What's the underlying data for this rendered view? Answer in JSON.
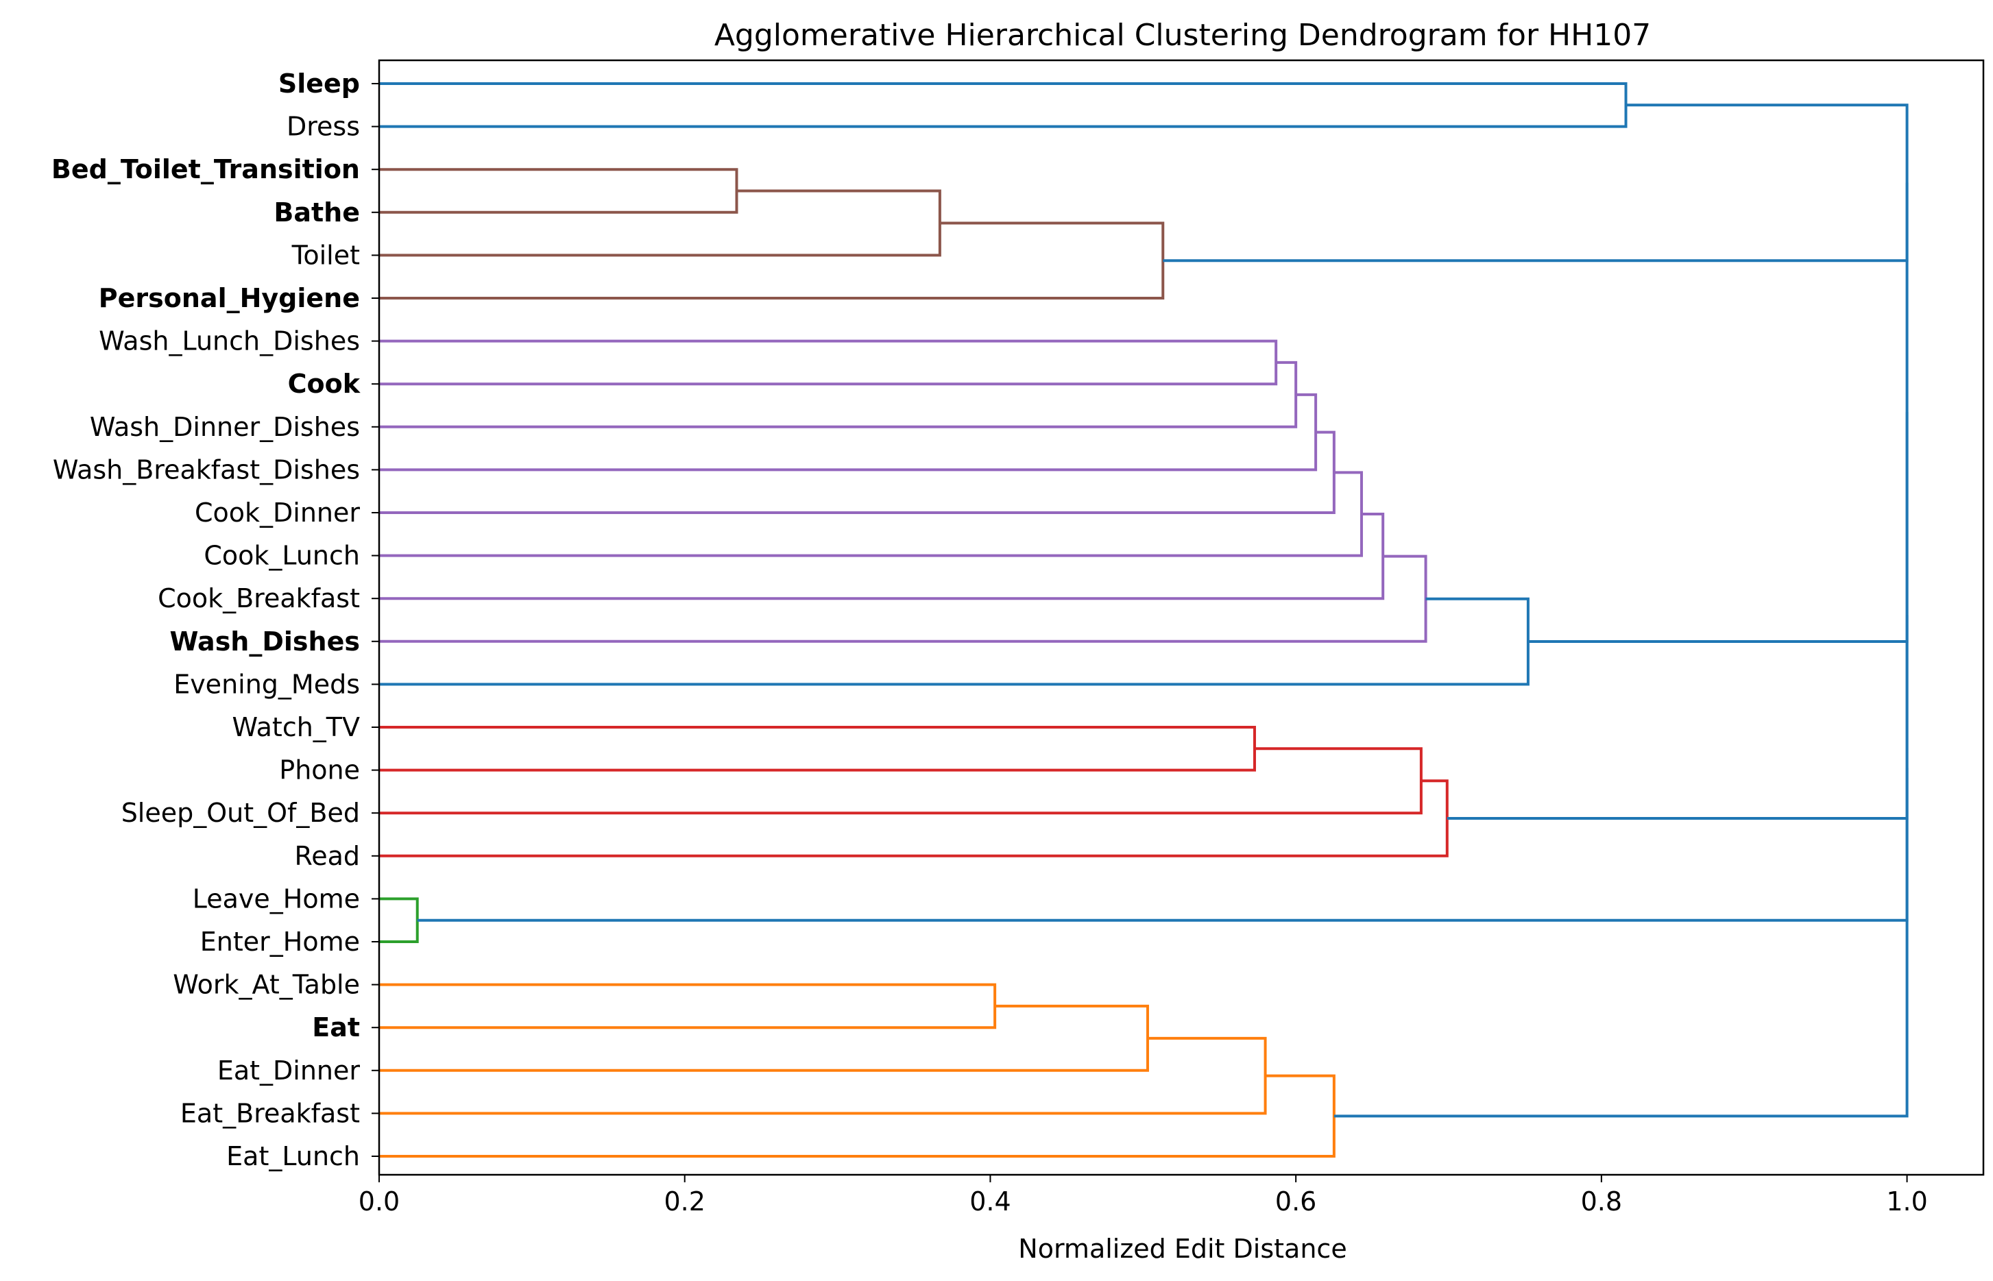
{
  "chart_data": {
    "type": "dendrogram",
    "orientation": "horizontal",
    "title": "Agglomerative Hierarchical Clustering Dendrogram for HH107",
    "xlabel": "Normalized Edit Distance",
    "ylabel": "",
    "xlim": [
      0,
      1.05
    ],
    "xticks": [
      0.0,
      0.2,
      0.4,
      0.6,
      0.8,
      1.0
    ],
    "xtick_labels": [
      "0.0",
      "0.2",
      "0.4",
      "0.6",
      "0.8",
      "1.0"
    ],
    "grid": false,
    "leaves": [
      {
        "label": "Sleep",
        "bold": true
      },
      {
        "label": "Dress",
        "bold": false
      },
      {
        "label": "Bed_Toilet_Transition",
        "bold": true
      },
      {
        "label": "Bathe",
        "bold": true
      },
      {
        "label": "Toilet",
        "bold": false
      },
      {
        "label": "Personal_Hygiene",
        "bold": true
      },
      {
        "label": "Wash_Lunch_Dishes",
        "bold": false
      },
      {
        "label": "Cook",
        "bold": true
      },
      {
        "label": "Wash_Dinner_Dishes",
        "bold": false
      },
      {
        "label": "Wash_Breakfast_Dishes",
        "bold": false
      },
      {
        "label": "Cook_Dinner",
        "bold": false
      },
      {
        "label": "Cook_Lunch",
        "bold": false
      },
      {
        "label": "Cook_Breakfast",
        "bold": false
      },
      {
        "label": "Wash_Dishes",
        "bold": true
      },
      {
        "label": "Evening_Meds",
        "bold": false
      },
      {
        "label": "Watch_TV",
        "bold": false
      },
      {
        "label": "Phone",
        "bold": false
      },
      {
        "label": "Sleep_Out_Of_Bed",
        "bold": false
      },
      {
        "label": "Read",
        "bold": false
      },
      {
        "label": "Leave_Home",
        "bold": false
      },
      {
        "label": "Enter_Home",
        "bold": false
      },
      {
        "label": "Work_At_Table",
        "bold": false
      },
      {
        "label": "Eat",
        "bold": true
      },
      {
        "label": "Eat_Dinner",
        "bold": false
      },
      {
        "label": "Eat_Breakfast",
        "bold": false
      },
      {
        "label": "Eat_Lunch",
        "bold": false
      }
    ],
    "colors": {
      "link": "#1f77b4",
      "orange": "#ff7f0e",
      "green": "#2ca02c",
      "red": "#d62728",
      "purple": "#9467bd",
      "brown": "#8c564b"
    },
    "merges": [
      {
        "id": "m1",
        "a": "Bed_Toilet_Transition",
        "b": "Bathe",
        "distance": 0.234,
        "color": "brown"
      },
      {
        "id": "m2",
        "a": "m1",
        "b": "Toilet",
        "distance": 0.367,
        "color": "brown"
      },
      {
        "id": "m3",
        "a": "m2",
        "b": "Personal_Hygiene",
        "distance": 0.513,
        "color": "brown"
      },
      {
        "id": "m4",
        "a": "Wash_Lunch_Dishes",
        "b": "Cook",
        "distance": 0.587,
        "color": "purple"
      },
      {
        "id": "m5",
        "a": "m4",
        "b": "Wash_Dinner_Dishes",
        "distance": 0.6,
        "color": "purple"
      },
      {
        "id": "m6",
        "a": "m5",
        "b": "Wash_Breakfast_Dishes",
        "distance": 0.613,
        "color": "purple"
      },
      {
        "id": "m7",
        "a": "m6",
        "b": "Cook_Dinner",
        "distance": 0.625,
        "color": "purple"
      },
      {
        "id": "m8",
        "a": "m7",
        "b": "Cook_Lunch",
        "distance": 0.643,
        "color": "purple"
      },
      {
        "id": "m9",
        "a": "m8",
        "b": "Cook_Breakfast",
        "distance": 0.657,
        "color": "purple"
      },
      {
        "id": "m10",
        "a": "m9",
        "b": "Wash_Dishes",
        "distance": 0.685,
        "color": "purple"
      },
      {
        "id": "m11",
        "a": "m10",
        "b": "Evening_Meds",
        "distance": 0.752,
        "color": "link"
      },
      {
        "id": "m12",
        "a": "Watch_TV",
        "b": "Phone",
        "distance": 0.573,
        "color": "red"
      },
      {
        "id": "m13",
        "a": "m12",
        "b": "Sleep_Out_Of_Bed",
        "distance": 0.682,
        "color": "red"
      },
      {
        "id": "m14",
        "a": "m13",
        "b": "Read",
        "distance": 0.699,
        "color": "red"
      },
      {
        "id": "m15",
        "a": "Leave_Home",
        "b": "Enter_Home",
        "distance": 0.025,
        "color": "green"
      },
      {
        "id": "m16",
        "a": "Work_At_Table",
        "b": "Eat",
        "distance": 0.403,
        "color": "orange"
      },
      {
        "id": "m17",
        "a": "m16",
        "b": "Eat_Dinner",
        "distance": 0.503,
        "color": "orange"
      },
      {
        "id": "m18",
        "a": "m17",
        "b": "Eat_Breakfast",
        "distance": 0.58,
        "color": "orange"
      },
      {
        "id": "m19",
        "a": "m18",
        "b": "Eat_Lunch",
        "distance": 0.625,
        "color": "orange"
      },
      {
        "id": "m20",
        "a": "Sleep",
        "b": "Dress",
        "distance": 0.816,
        "color": "link"
      },
      {
        "id": "m21",
        "a": "m20",
        "b": "m3",
        "distance": 1.0,
        "color": "link"
      },
      {
        "id": "m22",
        "a": "m21",
        "b": "m11",
        "distance": 1.0,
        "color": "link"
      },
      {
        "id": "m23",
        "a": "m22",
        "b": "m14",
        "distance": 1.0,
        "color": "link"
      },
      {
        "id": "m24",
        "a": "m23",
        "b": "m15",
        "distance": 1.0,
        "color": "link"
      },
      {
        "id": "m25",
        "a": "m24",
        "b": "m19",
        "distance": 1.0,
        "color": "link"
      }
    ]
  }
}
